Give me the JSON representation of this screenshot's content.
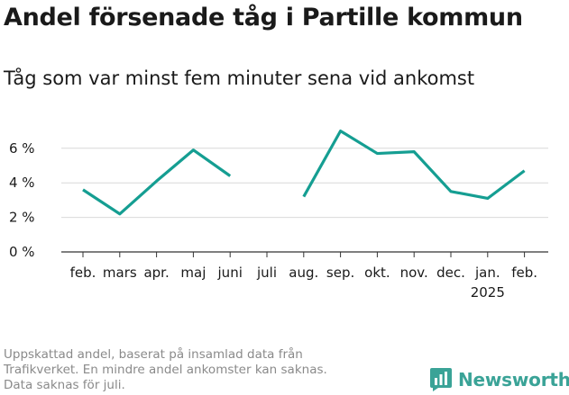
{
  "title": "Andel försenade tåg i Partille kommun",
  "subtitle": "Tåg som var minst fem minuter sena vid ankomst",
  "footer": {
    "line1": "Uppskattad andel, baserat på insamlad data från",
    "line2": "Trafikverket. En mindre andel ankomster kan saknas.",
    "line3": "Data saknas för juli."
  },
  "brand": {
    "name": "Newsworthy",
    "icon": "bar-chart-speech-icon",
    "color": "#3aa397"
  },
  "chart_data": {
    "type": "line",
    "categories": [
      "feb.",
      "mars",
      "apr.",
      "maj",
      "juni",
      "juli",
      "aug.",
      "sep.",
      "okt.",
      "nov.",
      "dec.",
      "jan.",
      "feb."
    ],
    "category_sublabels": [
      "",
      "",
      "",
      "",
      "",
      "",
      "",
      "",
      "",
      "",
      "",
      "2025",
      ""
    ],
    "series": [
      {
        "values": [
          3.6,
          2.2,
          4.1,
          5.9,
          4.4,
          null,
          3.2,
          7.0,
          5.7,
          5.8,
          3.5,
          3.1,
          4.7
        ]
      }
    ],
    "yticks": [
      0,
      2,
      4,
      6
    ],
    "ytick_labels": [
      "0 %",
      "2 %",
      "4 %",
      "6 %"
    ],
    "ylim": [
      0,
      7.4
    ],
    "grid": true,
    "line_color": "#159e92"
  }
}
